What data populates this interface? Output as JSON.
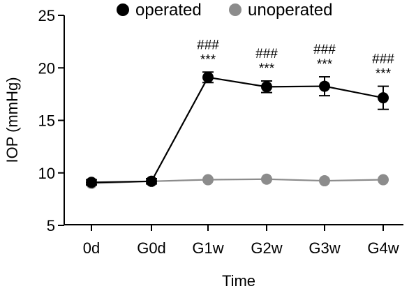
{
  "chart_data": {
    "type": "line",
    "title": "",
    "xlabel": "Time",
    "ylabel": "IOP (mmHg)",
    "ylim": [
      5,
      25
    ],
    "yticks": [
      5,
      10,
      15,
      20,
      25
    ],
    "categories": [
      "0d",
      "G0d",
      "G1w",
      "G2w",
      "G3w",
      "G4w"
    ],
    "legend_position": "top",
    "grid": false,
    "series": [
      {
        "name": "operated",
        "color": "#000000",
        "values": [
          9.1,
          9.2,
          19.1,
          18.2,
          18.25,
          17.15
        ],
        "errors": [
          0.25,
          0.25,
          0.5,
          0.55,
          0.9,
          1.1
        ]
      },
      {
        "name": "unoperated",
        "color": "#8c8c8c",
        "values": [
          9.0,
          9.2,
          9.35,
          9.4,
          9.25,
          9.35
        ],
        "errors": [
          0.1,
          0.1,
          0.1,
          0.1,
          0.1,
          0.1
        ]
      }
    ],
    "annotations": [
      {
        "category": "G1w",
        "lines": [
          "###",
          "***"
        ]
      },
      {
        "category": "G2w",
        "lines": [
          "###",
          "***"
        ]
      },
      {
        "category": "G3w",
        "lines": [
          "###",
          "***"
        ]
      },
      {
        "category": "G4w",
        "lines": [
          "###",
          "***"
        ]
      }
    ]
  }
}
